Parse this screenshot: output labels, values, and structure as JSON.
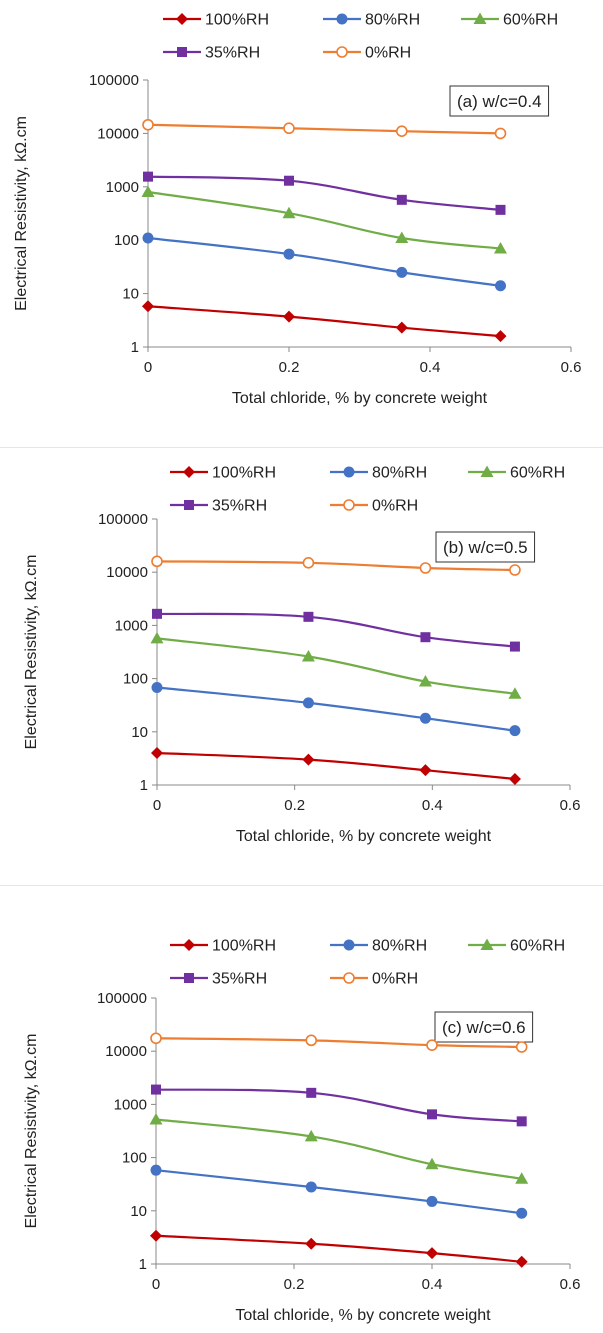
{
  "chart_data": [
    {
      "type": "line",
      "annotation": "(a) w/c=0.4",
      "xlabel": "Total chloride, % by concrete weight",
      "ylabel": "Electrical Resistivity, kΩ.cm",
      "xlim": [
        0,
        0.6
      ],
      "ylim": [
        1,
        100000
      ],
      "yscale": "log",
      "xticks": [
        "0",
        "0.2",
        "0.4",
        "0.6"
      ],
      "yticks": [
        "1",
        "10",
        "100",
        "1000",
        "10000",
        "100000"
      ],
      "grid": false,
      "legend_position": "top",
      "x": [
        0,
        0.2,
        0.36,
        0.5
      ],
      "series": [
        {
          "name": "100%RH",
          "color": "#c00000",
          "marker": "diamond",
          "values": [
            5.8,
            3.7,
            2.3,
            1.6
          ]
        },
        {
          "name": "80%RH",
          "color": "#4472c4",
          "marker": "circle",
          "values": [
            110,
            55,
            25,
            14
          ]
        },
        {
          "name": "60%RH",
          "color": "#70ad47",
          "marker": "triangle",
          "values": [
            800,
            320,
            110,
            70
          ]
        },
        {
          "name": "35%RH",
          "color": "#7030a0",
          "marker": "square",
          "values": [
            1550,
            1300,
            570,
            370
          ]
        },
        {
          "name": "0%RH",
          "color": "#ed7d31",
          "marker": "circle-open",
          "values": [
            14500,
            12500,
            11000,
            10000
          ]
        }
      ]
    },
    {
      "type": "line",
      "annotation": "(b) w/c=0.5",
      "xlabel": "Total chloride, % by concrete weight",
      "ylabel": "Electrical Resistivity, kΩ.cm",
      "xlim": [
        0,
        0.6
      ],
      "ylim": [
        1,
        100000
      ],
      "yscale": "log",
      "xticks": [
        "0",
        "0.2",
        "0.4",
        "0.6"
      ],
      "yticks": [
        "1",
        "10",
        "100",
        "1000",
        "10000",
        "100000"
      ],
      "grid": false,
      "legend_position": "top",
      "x": [
        0,
        0.22,
        0.39,
        0.52
      ],
      "series": [
        {
          "name": "100%RH",
          "color": "#c00000",
          "marker": "diamond",
          "values": [
            4,
            3,
            1.9,
            1.3
          ]
        },
        {
          "name": "80%RH",
          "color": "#4472c4",
          "marker": "circle",
          "values": [
            68,
            35,
            18,
            10.5
          ]
        },
        {
          "name": "60%RH",
          "color": "#70ad47",
          "marker": "triangle",
          "values": [
            570,
            260,
            88,
            52
          ]
        },
        {
          "name": "35%RH",
          "color": "#7030a0",
          "marker": "square",
          "values": [
            1650,
            1450,
            600,
            400
          ]
        },
        {
          "name": "0%RH",
          "color": "#ed7d31",
          "marker": "circle-open",
          "values": [
            16000,
            15000,
            12000,
            11000
          ]
        }
      ]
    },
    {
      "type": "line",
      "annotation": "(c) w/c=0.6",
      "xlabel": "Total chloride, % by concrete weight",
      "ylabel": "Electrical Resistivity, kΩ.cm",
      "xlim": [
        0,
        0.6
      ],
      "ylim": [
        1,
        100000
      ],
      "yscale": "log",
      "xticks": [
        "0",
        "0.2",
        "0.4",
        "0.6"
      ],
      "yticks": [
        "1",
        "10",
        "100",
        "1000",
        "10000",
        "100000"
      ],
      "grid": false,
      "legend_position": "top",
      "x": [
        0,
        0.225,
        0.4,
        0.53
      ],
      "series": [
        {
          "name": "100%RH",
          "color": "#c00000",
          "marker": "diamond",
          "values": [
            3.4,
            2.4,
            1.6,
            1.1
          ]
        },
        {
          "name": "80%RH",
          "color": "#4472c4",
          "marker": "circle",
          "values": [
            58,
            28,
            15,
            9
          ]
        },
        {
          "name": "60%RH",
          "color": "#70ad47",
          "marker": "triangle",
          "values": [
            520,
            250,
            75,
            40
          ]
        },
        {
          "name": "35%RH",
          "color": "#7030a0",
          "marker": "square",
          "values": [
            1900,
            1650,
            650,
            480
          ]
        },
        {
          "name": "0%RH",
          "color": "#ed7d31",
          "marker": "circle-open",
          "values": [
            17500,
            16000,
            13000,
            12000
          ]
        }
      ]
    }
  ]
}
